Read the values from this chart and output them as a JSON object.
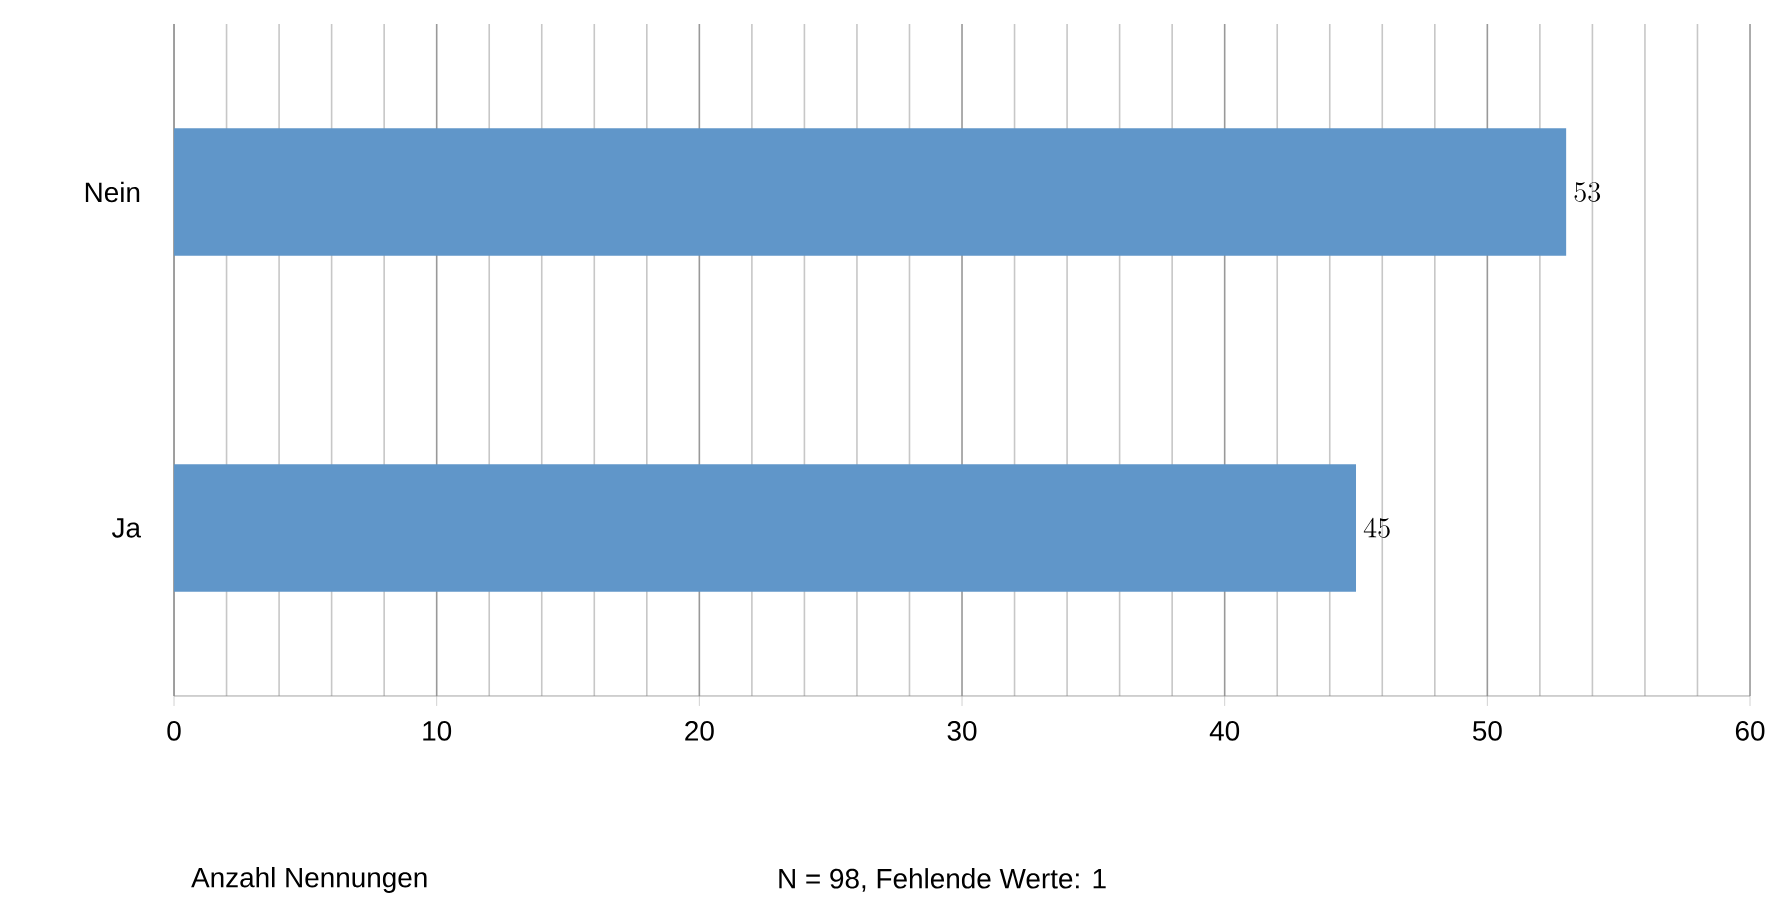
{
  "chart_data": {
    "type": "bar",
    "orientation": "horizontal",
    "categories": [
      "Nein",
      "Ja"
    ],
    "values": [
      53,
      45
    ],
    "color": "#6096c9",
    "xlim": [
      0,
      60
    ],
    "xticks": [
      0,
      10,
      20,
      30,
      40,
      50,
      60
    ],
    "grid": "x",
    "data_labels": true,
    "xlabel": "Anzahl Nennungen",
    "annotations": [
      "N = 98, Fehlende Werte: 1"
    ]
  }
}
